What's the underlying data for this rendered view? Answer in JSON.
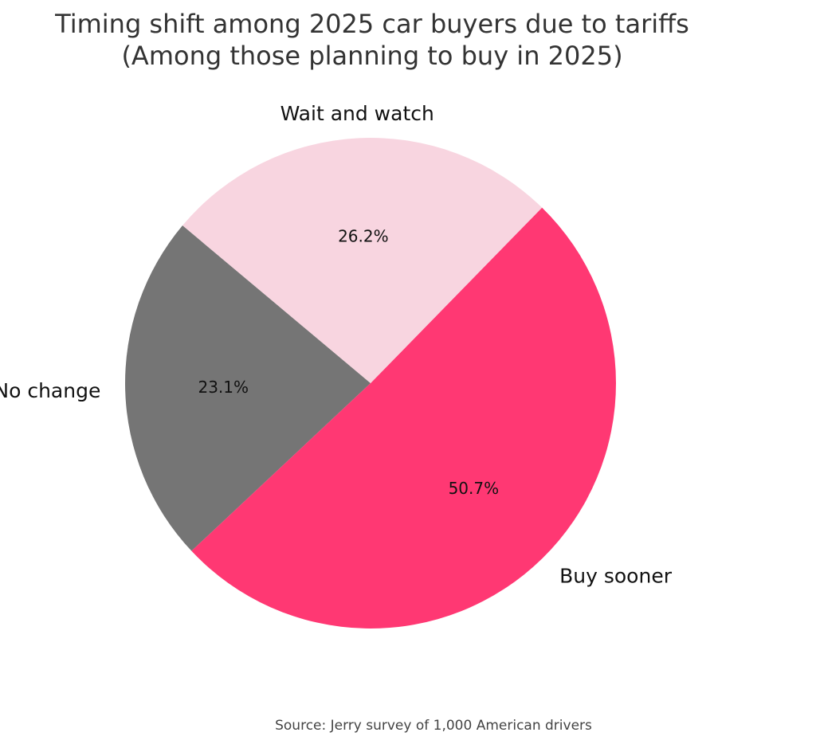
{
  "chart_data": {
    "type": "pie",
    "title": "Timing shift among 2025 car buyers due to tariffs",
    "subtitle": "(Among those planning to buy in 2025)",
    "slices": [
      {
        "label": "No change",
        "value": 23.1,
        "pct_label": "23.1%",
        "color": "#757575"
      },
      {
        "label": "Buy sooner",
        "value": 50.7,
        "pct_label": "50.7%",
        "color": "#ff3873"
      },
      {
        "label": "Wait and watch",
        "value": 26.2,
        "pct_label": "26.2%",
        "color": "#f8d5e0"
      }
    ],
    "start_angle_deg": 140,
    "direction": "counterclockwise",
    "source": "Source: Jerry survey of 1,000 American drivers"
  }
}
